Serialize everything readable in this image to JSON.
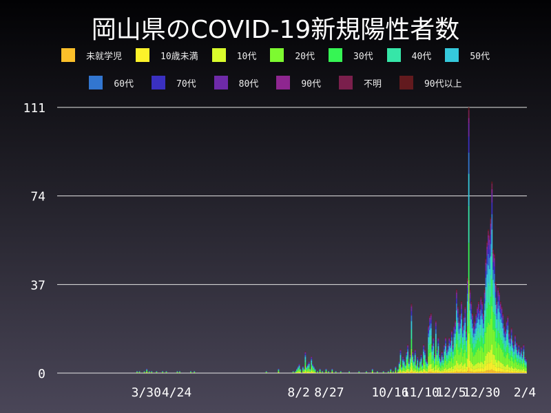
{
  "chart_data": {
    "type": "bar",
    "stacked": true,
    "title": "岡山県のCOVID-19新規陽性者数",
    "xlabel": "",
    "ylabel": "",
    "ylim": [
      0,
      111
    ],
    "yticks": [
      0,
      37,
      74,
      111
    ],
    "xlim": [
      "2020-01-17",
      "2021-02-04"
    ],
    "xticks": [
      {
        "date": "2020-03-30",
        "label": "3/30"
      },
      {
        "date": "2020-04-24",
        "label": "4/24"
      },
      {
        "date": "2020-08-02",
        "label": "8/2"
      },
      {
        "date": "2020-08-27",
        "label": "8/27"
      },
      {
        "date": "2020-10-16",
        "label": "10/16"
      },
      {
        "date": "2020-11-10",
        "label": "11/10"
      },
      {
        "date": "2020-12-05",
        "label": "12/5"
      },
      {
        "date": "2020-12-30",
        "label": "12/30"
      },
      {
        "date": "2021-02-04",
        "label": "2/4"
      }
    ],
    "grid": "horizontal",
    "legend_placement": "top",
    "series": [
      {
        "name": "未就学児",
        "color": "#fbbf2a",
        "share": 0.02
      },
      {
        "name": "10歳未満",
        "color": "#fdf22a",
        "share": 0.05
      },
      {
        "name": "10代",
        "color": "#d9fc2c",
        "share": 0.08
      },
      {
        "name": "20代",
        "color": "#7dfa30",
        "share": 0.2
      },
      {
        "name": "30代",
        "color": "#36f554",
        "share": 0.14
      },
      {
        "name": "40代",
        "color": "#36e6a8",
        "share": 0.14
      },
      {
        "name": "50代",
        "color": "#35c9dc",
        "share": 0.12
      },
      {
        "name": "60代",
        "color": "#3276d0",
        "share": 0.08
      },
      {
        "name": "70代",
        "color": "#3a30c0",
        "share": 0.06
      },
      {
        "name": "80代",
        "color": "#6e2aa8",
        "share": 0.05
      },
      {
        "name": "90代",
        "color": "#8e2690",
        "share": 0.02
      },
      {
        "name": "不明",
        "color": "#7a1f4c",
        "share": 0.03
      },
      {
        "name": "90代以上",
        "color": "#621a1e",
        "share": 0.01
      }
    ],
    "daily_totals": [
      [
        "2020-03-22",
        1
      ],
      [
        "2020-03-24",
        1
      ],
      [
        "2020-03-28",
        1
      ],
      [
        "2020-03-30",
        2
      ],
      [
        "2020-04-01",
        1
      ],
      [
        "2020-04-03",
        1
      ],
      [
        "2020-04-07",
        1
      ],
      [
        "2020-04-12",
        1
      ],
      [
        "2020-04-15",
        1
      ],
      [
        "2020-04-24",
        1
      ],
      [
        "2020-04-26",
        1
      ],
      [
        "2020-05-05",
        1
      ],
      [
        "2020-05-08",
        1
      ],
      [
        "2020-07-06",
        1
      ],
      [
        "2020-07-16",
        2
      ],
      [
        "2020-07-28",
        1
      ],
      [
        "2020-07-30",
        1
      ],
      [
        "2020-07-31",
        2
      ],
      [
        "2020-08-01",
        3
      ],
      [
        "2020-08-02",
        4
      ],
      [
        "2020-08-03",
        2
      ],
      [
        "2020-08-05",
        3
      ],
      [
        "2020-08-06",
        2
      ],
      [
        "2020-08-07",
        9
      ],
      [
        "2020-08-08",
        3
      ],
      [
        "2020-08-09",
        4
      ],
      [
        "2020-08-10",
        5
      ],
      [
        "2020-08-11",
        2
      ],
      [
        "2020-08-12",
        7
      ],
      [
        "2020-08-13",
        4
      ],
      [
        "2020-08-14",
        3
      ],
      [
        "2020-08-15",
        2
      ],
      [
        "2020-08-17",
        1
      ],
      [
        "2020-08-19",
        2
      ],
      [
        "2020-08-21",
        1
      ],
      [
        "2020-08-24",
        2
      ],
      [
        "2020-08-26",
        1
      ],
      [
        "2020-08-29",
        2
      ],
      [
        "2020-09-01",
        1
      ],
      [
        "2020-09-05",
        1
      ],
      [
        "2020-09-12",
        1
      ],
      [
        "2020-09-20",
        1
      ],
      [
        "2020-09-26",
        1
      ],
      [
        "2020-10-01",
        2
      ],
      [
        "2020-10-05",
        1
      ],
      [
        "2020-10-10",
        1
      ],
      [
        "2020-10-14",
        1
      ],
      [
        "2020-10-16",
        2
      ],
      [
        "2020-10-18",
        1
      ],
      [
        "2020-10-20",
        3
      ],
      [
        "2020-10-22",
        2
      ],
      [
        "2020-10-23",
        5
      ],
      [
        "2020-10-24",
        10
      ],
      [
        "2020-10-25",
        3
      ],
      [
        "2020-10-26",
        7
      ],
      [
        "2020-10-27",
        6
      ],
      [
        "2020-10-28",
        4
      ],
      [
        "2020-10-29",
        9
      ],
      [
        "2020-10-30",
        12
      ],
      [
        "2020-10-31",
        5
      ],
      [
        "2020-11-01",
        8
      ],
      [
        "2020-11-02",
        29
      ],
      [
        "2020-11-03",
        9
      ],
      [
        "2020-11-04",
        6
      ],
      [
        "2020-11-05",
        10
      ],
      [
        "2020-11-06",
        4
      ],
      [
        "2020-11-07",
        7
      ],
      [
        "2020-11-08",
        3
      ],
      [
        "2020-11-09",
        6
      ],
      [
        "2020-11-10",
        8
      ],
      [
        "2020-11-11",
        4
      ],
      [
        "2020-11-12",
        12
      ],
      [
        "2020-11-13",
        10
      ],
      [
        "2020-11-14",
        6
      ],
      [
        "2020-11-15",
        5
      ],
      [
        "2020-11-16",
        20
      ],
      [
        "2020-11-17",
        24
      ],
      [
        "2020-11-18",
        25
      ],
      [
        "2020-11-19",
        12
      ],
      [
        "2020-11-20",
        15
      ],
      [
        "2020-11-21",
        8
      ],
      [
        "2020-11-22",
        22
      ],
      [
        "2020-11-23",
        10
      ],
      [
        "2020-11-24",
        15
      ],
      [
        "2020-11-25",
        8
      ],
      [
        "2020-11-26",
        6
      ],
      [
        "2020-11-27",
        9
      ],
      [
        "2020-11-28",
        7
      ],
      [
        "2020-11-29",
        12
      ],
      [
        "2020-11-30",
        15
      ],
      [
        "2020-12-01",
        10
      ],
      [
        "2020-12-02",
        12
      ],
      [
        "2020-12-03",
        15
      ],
      [
        "2020-12-04",
        14
      ],
      [
        "2020-12-05",
        18
      ],
      [
        "2020-12-06",
        12
      ],
      [
        "2020-12-07",
        20
      ],
      [
        "2020-12-08",
        22
      ],
      [
        "2020-12-09",
        35
      ],
      [
        "2020-12-10",
        28
      ],
      [
        "2020-12-11",
        22
      ],
      [
        "2020-12-12",
        25
      ],
      [
        "2020-12-13",
        30
      ],
      [
        "2020-12-14",
        20
      ],
      [
        "2020-12-15",
        24
      ],
      [
        "2020-12-16",
        28
      ],
      [
        "2020-12-17",
        18
      ],
      [
        "2020-12-18",
        40
      ],
      [
        "2020-12-19",
        111
      ],
      [
        "2020-12-20",
        35
      ],
      [
        "2020-12-21",
        30
      ],
      [
        "2020-12-22",
        25
      ],
      [
        "2020-12-23",
        20
      ],
      [
        "2020-12-24",
        22
      ],
      [
        "2020-12-25",
        25
      ],
      [
        "2020-12-26",
        28
      ],
      [
        "2020-12-27",
        30
      ],
      [
        "2020-12-28",
        27
      ],
      [
        "2020-12-29",
        32
      ],
      [
        "2020-12-30",
        30
      ],
      [
        "2020-12-31",
        25
      ],
      [
        "2021-01-01",
        35
      ],
      [
        "2021-01-02",
        48
      ],
      [
        "2021-01-03",
        55
      ],
      [
        "2021-01-04",
        60
      ],
      [
        "2021-01-05",
        58
      ],
      [
        "2021-01-06",
        65
      ],
      [
        "2021-01-07",
        80
      ],
      [
        "2021-01-08",
        52
      ],
      [
        "2021-01-09",
        50
      ],
      [
        "2021-01-10",
        38
      ],
      [
        "2021-01-11",
        30
      ],
      [
        "2021-01-12",
        36
      ],
      [
        "2021-01-13",
        34
      ],
      [
        "2021-01-14",
        30
      ],
      [
        "2021-01-15",
        28
      ],
      [
        "2021-01-16",
        25
      ],
      [
        "2021-01-17",
        20
      ],
      [
        "2021-01-18",
        18
      ],
      [
        "2021-01-19",
        22
      ],
      [
        "2021-01-20",
        24
      ],
      [
        "2021-01-21",
        17
      ],
      [
        "2021-01-22",
        15
      ],
      [
        "2021-01-23",
        19
      ],
      [
        "2021-01-24",
        14
      ],
      [
        "2021-01-25",
        12
      ],
      [
        "2021-01-26",
        16
      ],
      [
        "2021-01-27",
        13
      ],
      [
        "2021-01-28",
        10
      ],
      [
        "2021-01-29",
        12
      ],
      [
        "2021-01-30",
        9
      ],
      [
        "2021-01-31",
        11
      ],
      [
        "2021-02-01",
        8
      ],
      [
        "2021-02-02",
        12
      ],
      [
        "2021-02-03",
        7
      ],
      [
        "2021-02-04",
        6
      ]
    ]
  }
}
